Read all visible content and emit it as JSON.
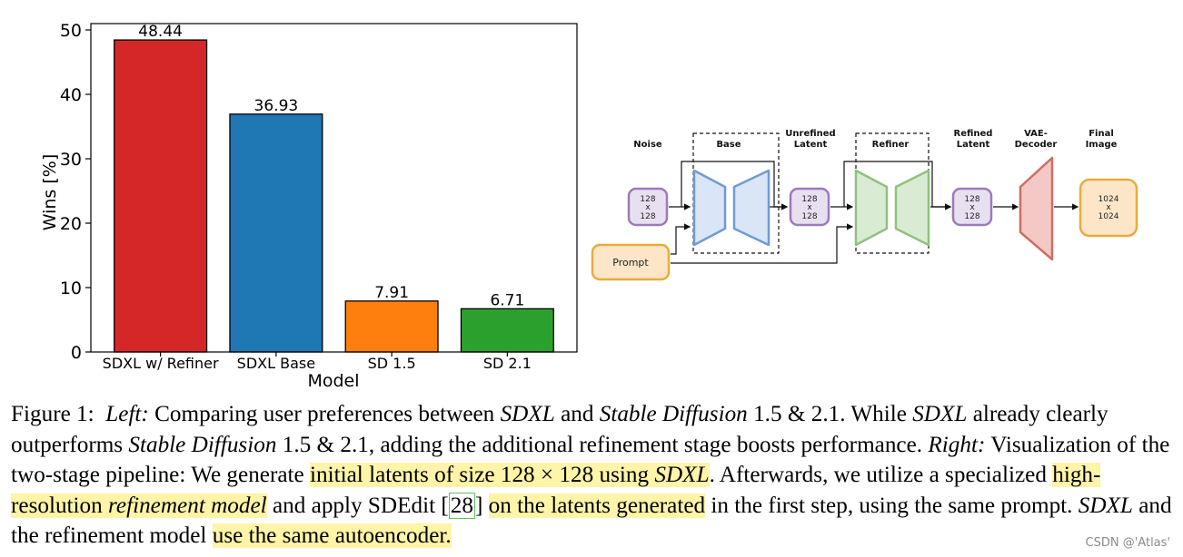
{
  "chart_data": {
    "type": "bar",
    "title": "",
    "xlabel": "Model",
    "ylabel": "Wins [%]",
    "ylim": [
      0,
      50
    ],
    "yticks": [
      0,
      10,
      20,
      30,
      40,
      50
    ],
    "categories": [
      "SDXL w/ Refiner",
      "SDXL Base",
      "SD 1.5",
      "SD 2.1"
    ],
    "values": [
      48.44,
      36.93,
      7.91,
      6.71
    ],
    "value_labels": [
      "48.44",
      "36.93",
      "7.91",
      "6.71"
    ],
    "colors": [
      "#d62728",
      "#1f77b4",
      "#ff7f0e",
      "#2ca02c"
    ]
  },
  "diagram": {
    "labels": {
      "noise": "Noise",
      "base": "Base",
      "unrefined_1": "Unrefined",
      "unrefined_2": "Latent",
      "refiner": "Refiner",
      "refined_1": "Refined",
      "refined_2": "Latent",
      "vae_1": "VAE-",
      "vae_2": "Decoder",
      "final_1": "Final",
      "final_2": "Image"
    },
    "nodes": {
      "noise_box": [
        "128",
        "x",
        "128"
      ],
      "unrefined_box": [
        "128",
        "x",
        "128"
      ],
      "refined_box": [
        "128",
        "x",
        "128"
      ],
      "final_box": [
        "1024",
        "x",
        "1024"
      ],
      "prompt": "Prompt"
    },
    "colors": {
      "latent_fill": "#e8e0f0",
      "latent_stroke": "#9b7bb8",
      "base_fill": "#dae6f7",
      "base_stroke": "#6f9bd1",
      "refiner_fill": "#d9ecd3",
      "refiner_stroke": "#8fc17f",
      "vae_fill": "#f4c9c5",
      "vae_stroke": "#d06d66",
      "orange_fill": "#fde6c8",
      "orange_stroke": "#e8ac3c"
    }
  },
  "caption": {
    "label": "Figure 1:",
    "left_label": "Left:",
    "s1": "Comparing user preferences between",
    "sdxl": "SDXL",
    "and": "and",
    "sd": "Stable Diffusion",
    "s2": "1.5 & 2.1. While",
    "s3": "already clearly outperforms",
    "s4": "1.5 & 2.1, adding the additional refinement stage boosts performance.",
    "right_label": "Right:",
    "s5": "Visualization of the two-stage pipeline: We generate",
    "h1a": "initial latents of size 128 × 128 using",
    "s6": ". Afterwards, we utilize a specialized",
    "h2a": "high-resolution",
    "h2b": "refinement model",
    "s7": "and apply SDEdit [",
    "cite": "28",
    "s8": "]",
    "h3": "on the latents generated",
    "s9": "in the first step, using the same prompt.",
    "s10": "and the refinement model",
    "h4": "use the same autoencoder."
  },
  "watermark": "CSDN @'Atlas'"
}
